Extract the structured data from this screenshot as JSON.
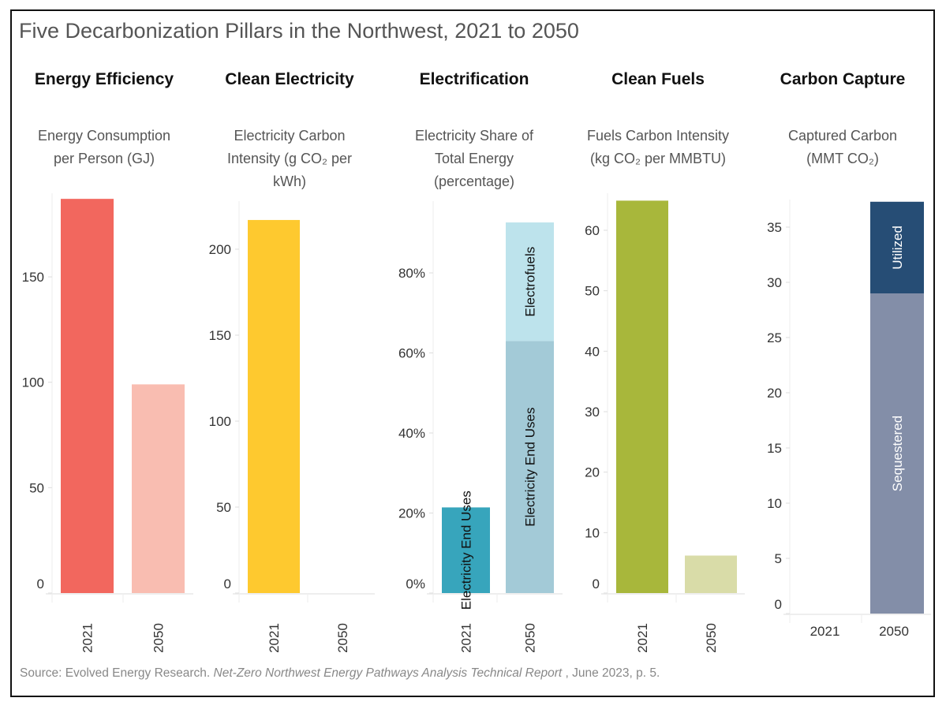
{
  "title": "Five Decarbonization Pillars in the Northwest, 2021 to 2050",
  "source": {
    "prefix": "Source: Evolved Energy Research. ",
    "report": "Net-Zero Northwest Energy Pathways Analysis Technical Report",
    "suffix": " , June 2023, p. 5."
  },
  "chart_data": [
    {
      "type": "bar",
      "title": "Energy Efficiency",
      "ylabel_lines": [
        "Energy Consumption",
        "per Person (GJ)"
      ],
      "categories": [
        "2021",
        "2050"
      ],
      "series": [
        {
          "values": [
            187,
            99
          ],
          "colors": [
            "#f2675e",
            "#f9bdb1"
          ]
        }
      ],
      "yticks": [
        "0",
        "50",
        "100",
        "150"
      ],
      "ytick_values": [
        0,
        50,
        100,
        150
      ],
      "ylim": [
        0,
        190
      ],
      "grid": false
    },
    {
      "type": "bar",
      "title": "Clean Electricity",
      "ylabel_lines": [
        "Electricity Carbon",
        "Intensity (g CO₂ per",
        "kWh)"
      ],
      "categories": [
        "2021",
        "2050"
      ],
      "series": [
        {
          "values": [
            217,
            0
          ],
          "colors": [
            "#fec92f",
            "#fec92f"
          ]
        }
      ],
      "yticks": [
        "0",
        "50",
        "100",
        "150",
        "200"
      ],
      "ytick_values": [
        0,
        50,
        100,
        150,
        200
      ],
      "ylim": [
        0,
        228
      ],
      "grid": false
    },
    {
      "type": "bar",
      "stacked": true,
      "title": "Electrification",
      "ylabel_lines": [
        "Electricity Share of",
        "Total Energy",
        "(percentage)"
      ],
      "categories": [
        "2021",
        "2050"
      ],
      "series": [
        {
          "name": "Electricity End Uses",
          "values": [
            21.4,
            63
          ],
          "colors": [
            "#37a5bc",
            "#a3cad7"
          ],
          "label_color": "#111"
        },
        {
          "name": "Electrofuels",
          "values": [
            0,
            29.6
          ],
          "colors": [
            "#bde3ec",
            "#bde3ec"
          ],
          "label_color": "#111"
        }
      ],
      "yticks": [
        "0%",
        "20%",
        "40%",
        "60%",
        "80%"
      ],
      "ytick_values": [
        0,
        20,
        40,
        60,
        80
      ],
      "ylim": [
        0,
        97
      ],
      "grid": false
    },
    {
      "type": "bar",
      "title": "Clean Fuels",
      "ylabel_lines": [
        "Fuels Carbon Intensity",
        "(kg CO₂ per MMBTU)"
      ],
      "categories": [
        "2021",
        "2050"
      ],
      "series": [
        {
          "values": [
            64.9,
            6.2
          ],
          "colors": [
            "#a8b73b",
            "#d9dca8"
          ]
        }
      ],
      "yticks": [
        "0",
        "10",
        "20",
        "30",
        "40",
        "50",
        "60"
      ],
      "ytick_values": [
        0,
        10,
        20,
        30,
        40,
        50,
        60
      ],
      "ylim": [
        0,
        65
      ],
      "grid": false
    },
    {
      "type": "bar",
      "stacked": true,
      "title": "Carbon Capture",
      "ylabel_lines": [
        "Captured Carbon",
        "(MMT CO₂)"
      ],
      "categories": [
        "2021",
        "2050"
      ],
      "series": [
        {
          "name": "Sequestered",
          "values": [
            0,
            29.0
          ],
          "colors": [
            "#838ea8",
            "#838ea8"
          ],
          "label_color": "#fff"
        },
        {
          "name": "Utilized",
          "values": [
            0,
            8.3
          ],
          "colors": [
            "#264d75",
            "#264d75"
          ],
          "label_color": "#fff"
        }
      ],
      "yticks": [
        "0",
        "5",
        "10",
        "15",
        "20",
        "25",
        "30",
        "35"
      ],
      "ytick_values": [
        0,
        5,
        10,
        15,
        20,
        25,
        30,
        35
      ],
      "ylim": [
        0,
        38
      ],
      "grid": false
    }
  ]
}
